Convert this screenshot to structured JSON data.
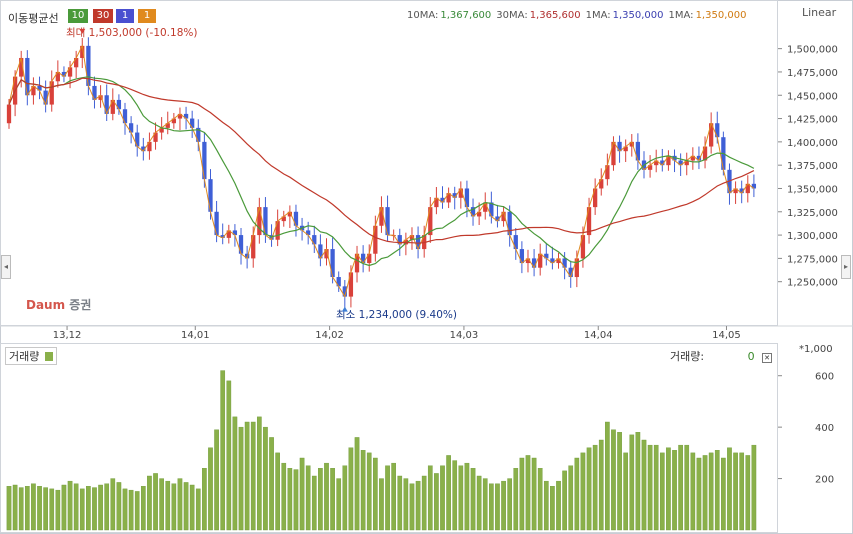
{
  "header": {
    "ma_label": "이동평균선",
    "ma_periods": [
      {
        "value": "10",
        "color": "#4a9a3a"
      },
      {
        "value": "30",
        "color": "#c0392b"
      },
      {
        "value": "1",
        "color": "#4a4fd0"
      },
      {
        "value": "1",
        "color": "#e08a1e"
      }
    ],
    "ma_values": [
      {
        "label": "10MA:",
        "value": "1,367,600",
        "color": "#3a8a3a"
      },
      {
        "label": "30MA:",
        "value": "1,365,600",
        "color": "#b03030"
      },
      {
        "label": "1MA:",
        "value": "1,350,000",
        "color": "#3a3fb0"
      },
      {
        "label": "1MA:",
        "value": "1,350,000",
        "color": "#d07a10"
      }
    ],
    "scale_mode": "Linear"
  },
  "annotations": {
    "max_label": "최대 1,503,000 (-10.18%)",
    "min_label": "최소 1,234,000 (9.40%)"
  },
  "logo": {
    "text_a": "Daum",
    "text_b": "증권"
  },
  "volume_panel": {
    "title": "거래량",
    "readout_label": "거래량:",
    "readout_value": "0",
    "close_icon": "close-icon",
    "unit": "*1,000"
  },
  "chart_data": [
    {
      "type": "candlestick",
      "title": "",
      "x_tick_labels": [
        "13,12",
        "14,01",
        "14,02",
        "14,03",
        "14,04",
        "14,05"
      ],
      "y_tick_labels": [
        "1,250,000",
        "1,275,000",
        "1,300,000",
        "1,325,000",
        "1,350,000",
        "1,375,000",
        "1,400,000",
        "1,425,000",
        "1,450,000",
        "1,475,000",
        "1,500,000"
      ],
      "ylim": [
        1225000,
        1520000
      ],
      "up_color": "#d9413a",
      "down_color": "#3f5fd6",
      "close": [
        1440000,
        1470000,
        1490000,
        1450000,
        1460000,
        1455000,
        1440000,
        1465000,
        1475000,
        1470000,
        1480000,
        1490000,
        1503000,
        1460000,
        1445000,
        1450000,
        1430000,
        1445000,
        1435000,
        1420000,
        1410000,
        1395000,
        1390000,
        1400000,
        1410000,
        1415000,
        1420000,
        1425000,
        1430000,
        1425000,
        1415000,
        1400000,
        1360000,
        1325000,
        1300000,
        1297000,
        1305000,
        1300000,
        1280000,
        1275000,
        1300000,
        1330000,
        1300000,
        1295000,
        1315000,
        1320000,
        1325000,
        1310000,
        1305000,
        1300000,
        1290000,
        1275000,
        1285000,
        1255000,
        1245000,
        1234000,
        1260000,
        1280000,
        1270000,
        1280000,
        1310000,
        1330000,
        1300000,
        1300000,
        1290000,
        1295000,
        1300000,
        1285000,
        1300000,
        1330000,
        1340000,
        1335000,
        1345000,
        1340000,
        1350000,
        1330000,
        1320000,
        1325000,
        1335000,
        1320000,
        1315000,
        1325000,
        1300000,
        1285000,
        1270000,
        1275000,
        1265000,
        1280000,
        1275000,
        1270000,
        1275000,
        1265000,
        1255000,
        1275000,
        1300000,
        1330000,
        1350000,
        1360000,
        1375000,
        1400000,
        1390000,
        1395000,
        1400000,
        1380000,
        1370000,
        1375000,
        1380000,
        1375000,
        1385000,
        1380000,
        1375000,
        1380000,
        1385000,
        1380000,
        1395000,
        1420000,
        1405000,
        1370000,
        1345000,
        1350000,
        1345000,
        1355000,
        1350000
      ],
      "volume_ylim": [
        0,
        700
      ],
      "volume_tick_labels": [
        "200",
        "400",
        "600"
      ],
      "volume_color": "#8ab04a",
      "volume": [
        170,
        175,
        165,
        170,
        180,
        170,
        165,
        160,
        155,
        175,
        190,
        180,
        160,
        170,
        165,
        175,
        180,
        200,
        185,
        160,
        155,
        150,
        170,
        210,
        220,
        200,
        190,
        180,
        200,
        185,
        175,
        160,
        240,
        320,
        390,
        620,
        580,
        440,
        400,
        420,
        420,
        440,
        400,
        360,
        300,
        260,
        240,
        235,
        280,
        250,
        210,
        240,
        260,
        240,
        200,
        250,
        320,
        360,
        310,
        300,
        280,
        200,
        250,
        260,
        210,
        200,
        180,
        190,
        210,
        250,
        220,
        250,
        290,
        270,
        250,
        260,
        240,
        210,
        200,
        180,
        180,
        190,
        200,
        240,
        280,
        290,
        280,
        240,
        190,
        170,
        190,
        230,
        250,
        280,
        300,
        320,
        330,
        350,
        420,
        390,
        380,
        300,
        370,
        380,
        350,
        330,
        330,
        300,
        320,
        310,
        330,
        330,
        300,
        280,
        290,
        300,
        310,
        280,
        320,
        300,
        300,
        290,
        330
      ]
    }
  ]
}
